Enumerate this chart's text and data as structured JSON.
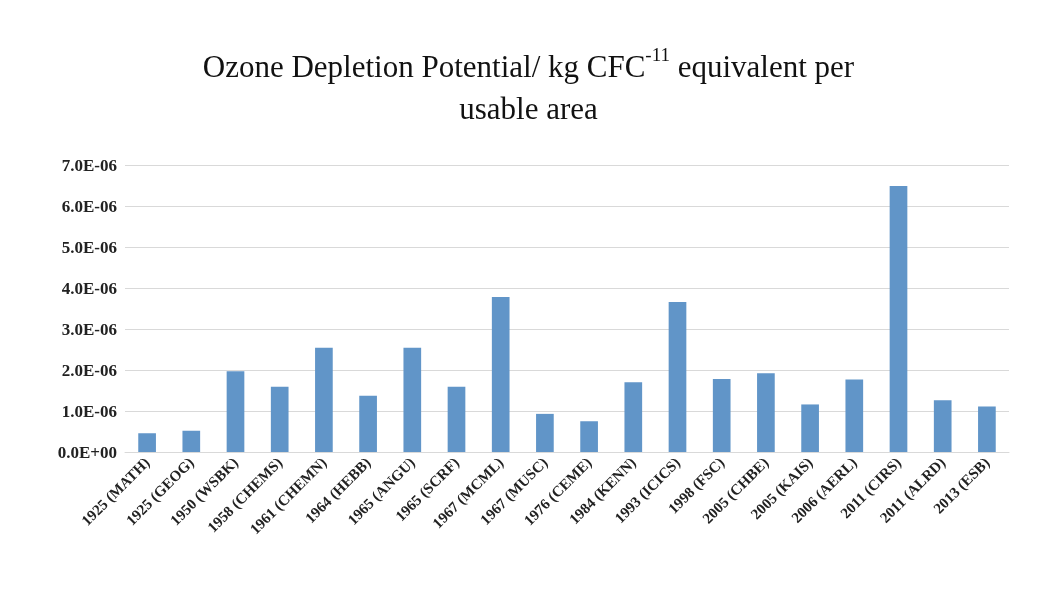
{
  "chart_data": {
    "type": "bar",
    "title": "Ozone Depletion Potential/ kg CFC$^{-11}$ equivalent per usable area",
    "categories": [
      "1925 (MATH)",
      "1925 (GEOG)",
      "1950 (WSBK)",
      "1958 (CHEMS)",
      "1961 (CHEMN)",
      "1964 (HEBB)",
      "1965 (ANGU)",
      "1965 (SCRF)",
      "1967 (MCML)",
      "1967 (MUSC)",
      "1976 (CEME)",
      "1984 (KENN)",
      "1993 (ICICS)",
      "1998 (FSC)",
      "2005 (CHBE)",
      "2005 (KAIS)",
      "2006 (AERL)",
      "2011 (CIRS)",
      "2011 (ALRD)",
      "2013 (ESB)"
    ],
    "values": [
      4.6e-07,
      5.2e-07,
      1.97e-06,
      1.59e-06,
      2.54e-06,
      1.37e-06,
      2.54e-06,
      1.59e-06,
      3.78e-06,
      9.3e-07,
      7.5e-07,
      1.7e-06,
      3.66e-06,
      1.78e-06,
      1.92e-06,
      1.16e-06,
      1.77e-06,
      6.49e-06,
      1.26e-06,
      1.11e-06
    ],
    "color": "#6195c8",
    "ylim": [
      0,
      7e-06
    ],
    "yticks": [
      {
        "value": 0,
        "label": "0.0E+00"
      },
      {
        "value": 1e-06,
        "label": "1.0E-06"
      },
      {
        "value": 2e-06,
        "label": "2.0E-06"
      },
      {
        "value": 3e-06,
        "label": "3.0E-06"
      },
      {
        "value": 4e-06,
        "label": "4.0E-06"
      },
      {
        "value": 5e-06,
        "label": "5.0E-06"
      },
      {
        "value": 6e-06,
        "label": "6.0E-06"
      },
      {
        "value": 7e-06,
        "label": "7.0E-06"
      }
    ],
    "grid": "y"
  }
}
